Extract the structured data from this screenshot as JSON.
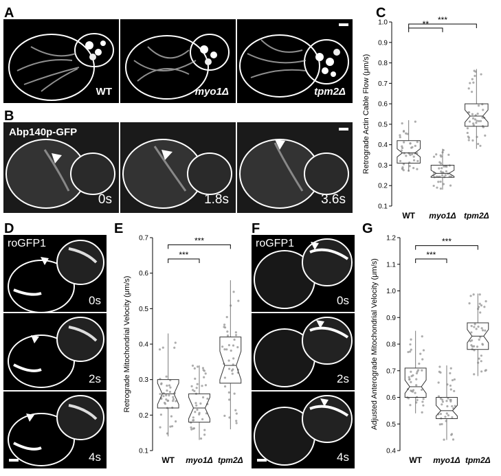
{
  "panels": {
    "A": {
      "letter": "A",
      "images": [
        {
          "label": "WT",
          "italic": false
        },
        {
          "label": "myo1Δ",
          "italic": true
        },
        {
          "label": "tpm2Δ",
          "italic": true
        }
      ]
    },
    "B": {
      "letter": "B",
      "marker": "Abp140p-GFP",
      "times": [
        "0s",
        "1.8s",
        "3.6s"
      ]
    },
    "D": {
      "letter": "D",
      "marker": "roGFP1",
      "times": [
        "0s",
        "2s",
        "4s"
      ]
    },
    "F": {
      "letter": "F",
      "marker": "roGFP1",
      "times": [
        "0s",
        "2s",
        "4s"
      ]
    },
    "C": {
      "letter": "C"
    },
    "E": {
      "letter": "E"
    },
    "G": {
      "letter": "G"
    }
  },
  "chart_data": [
    {
      "id": "C",
      "type": "box",
      "ylabel": "Retrograde Actin Cable Flow (μm/s)",
      "categories": [
        "WT",
        "myo1Δ",
        "tpm2Δ"
      ],
      "ylim": [
        0.1,
        1.0
      ],
      "yticks": [
        "0.1",
        "0.2",
        "0.3",
        "0.4",
        "0.5",
        "0.6",
        "0.7",
        "0.8",
        "0.9",
        "1.0"
      ],
      "boxes": [
        {
          "whisker_low": 0.27,
          "q1": 0.31,
          "median": 0.36,
          "q3": 0.42,
          "whisker_high": 0.52,
          "notch": 0.02
        },
        {
          "whisker_low": 0.18,
          "q1": 0.24,
          "median": 0.26,
          "q3": 0.3,
          "whisker_high": 0.38,
          "notch": 0.015
        },
        {
          "whisker_low": 0.38,
          "q1": 0.49,
          "median": 0.54,
          "q3": 0.6,
          "whisker_high": 0.77,
          "notch": 0.03
        }
      ],
      "significance": [
        {
          "pair": [
            0,
            1
          ],
          "label": "**",
          "y": 0.97
        },
        {
          "pair": [
            0,
            2
          ],
          "label": "***",
          "y": 0.99
        }
      ]
    },
    {
      "id": "E",
      "type": "box",
      "ylabel": "Retrograde Mitochondrial Velocity (μm/s)",
      "categories": [
        "WT",
        "myo1Δ",
        "tpm2Δ"
      ],
      "ylim": [
        0.1,
        0.7
      ],
      "yticks": [
        "0.1",
        "0.2",
        "0.3",
        "0.4",
        "0.5",
        "0.6",
        "0.7"
      ],
      "boxes": [
        {
          "whisker_low": 0.14,
          "q1": 0.22,
          "median": 0.26,
          "q3": 0.3,
          "whisker_high": 0.43,
          "notch": 0.03
        },
        {
          "whisker_low": 0.13,
          "q1": 0.18,
          "median": 0.22,
          "q3": 0.26,
          "whisker_high": 0.34,
          "notch": 0.03
        },
        {
          "whisker_low": 0.16,
          "q1": 0.29,
          "median": 0.34,
          "q3": 0.42,
          "whisker_high": 0.58,
          "notch": 0.04
        }
      ],
      "significance": [
        {
          "pair": [
            0,
            1
          ],
          "label": "***",
          "y": 0.64
        },
        {
          "pair": [
            0,
            2
          ],
          "label": "***",
          "y": 0.68
        }
      ]
    },
    {
      "id": "G",
      "type": "box",
      "ylabel": "Adjusted Anterograde Mitochondrial Velocity (μm/s)",
      "categories": [
        "WT",
        "myo1Δ",
        "tpm2Δ"
      ],
      "ylim": [
        0.4,
        1.2
      ],
      "yticks": [
        "0.4",
        "0.5",
        "0.6",
        "0.7",
        "0.8",
        "0.9",
        "1.0",
        "1.1",
        "1.2"
      ],
      "boxes": [
        {
          "whisker_low": 0.54,
          "q1": 0.6,
          "median": 0.64,
          "q3": 0.71,
          "whisker_high": 0.85,
          "notch": 0.025
        },
        {
          "whisker_low": 0.44,
          "q1": 0.52,
          "median": 0.55,
          "q3": 0.6,
          "whisker_high": 0.72,
          "notch": 0.02
        },
        {
          "whisker_low": 0.68,
          "q1": 0.78,
          "median": 0.83,
          "q3": 0.88,
          "whisker_high": 0.99,
          "notch": 0.025
        }
      ],
      "significance": [
        {
          "pair": [
            0,
            1
          ],
          "label": "***",
          "y": 1.12
        },
        {
          "pair": [
            0,
            2
          ],
          "label": "***",
          "y": 1.17
        }
      ]
    }
  ]
}
